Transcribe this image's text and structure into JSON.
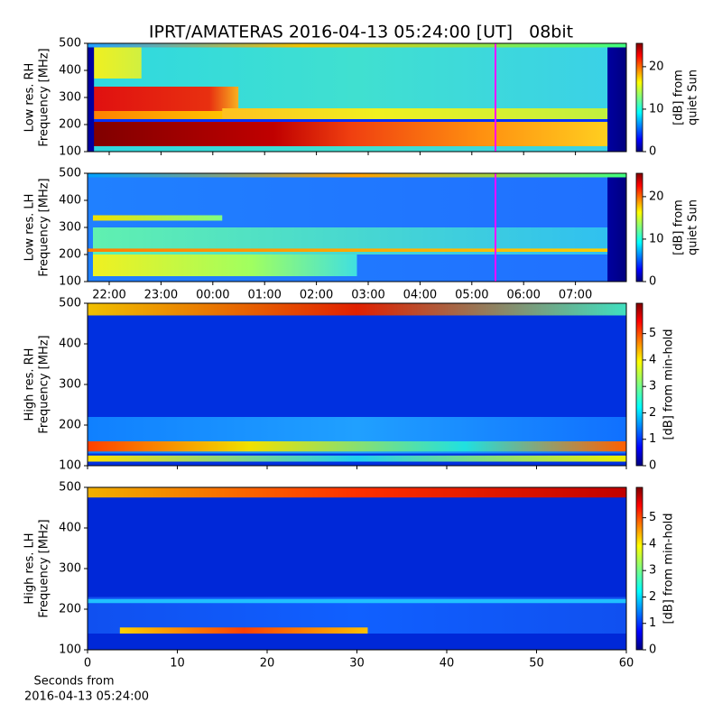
{
  "title": "IPRT/AMATERAS 2016-04-13 05:24:00 [UT]   08bit",
  "xlabel": [
    "Seconds from",
    "2016-04-13 05:24:00"
  ],
  "chart_data": [
    {
      "type": "heatmap",
      "ylabel": [
        "Low res. RH",
        "Frequency [MHz]"
      ],
      "ylim": [
        100,
        500
      ],
      "yticks": [
        100,
        200,
        300,
        400,
        500
      ],
      "colorbar": {
        "label": [
          "[dB] from",
          "quiet Sun"
        ],
        "lim": [
          0,
          25.5
        ],
        "ticks": [
          0,
          10,
          20
        ]
      }
    },
    {
      "type": "heatmap",
      "ylabel": [
        "Low res. LH",
        "Frequency [MHz]"
      ],
      "ylim": [
        100,
        500
      ],
      "yticks": [
        100,
        200,
        300,
        400,
        500
      ],
      "xticks": [
        "22:00",
        "23:00",
        "00:00",
        "01:00",
        "02:00",
        "03:00",
        "04:00",
        "05:00",
        "06:00",
        "07:00"
      ],
      "colorbar": {
        "label": [
          "[dB] from",
          "quiet Sun"
        ],
        "lim": [
          0,
          25.5
        ],
        "ticks": [
          0,
          10,
          20
        ]
      }
    },
    {
      "type": "heatmap",
      "ylabel": [
        "High res. RH",
        "Frequency [MHz]"
      ],
      "ylim": [
        100,
        500
      ],
      "yticks": [
        100,
        200,
        300,
        400,
        500
      ],
      "xlim": [
        0,
        60
      ],
      "colorbar": {
        "label": [
          "[dB] from min-hold"
        ],
        "lim": [
          0,
          6.15
        ],
        "ticks": [
          0,
          1,
          2,
          3,
          4,
          5
        ]
      }
    },
    {
      "type": "heatmap",
      "ylabel": [
        "High res. LH",
        "Frequency [MHz]"
      ],
      "ylim": [
        100,
        500
      ],
      "yticks": [
        100,
        200,
        300,
        400,
        500
      ],
      "xlim": [
        0,
        60
      ],
      "xticks": [
        0,
        10,
        20,
        30,
        40,
        50,
        60
      ],
      "colorbar": {
        "label": [
          "[dB] from min-hold"
        ],
        "lim": [
          0,
          6.15
        ],
        "ticks": [
          0,
          1,
          2,
          3,
          4,
          5
        ]
      }
    }
  ]
}
